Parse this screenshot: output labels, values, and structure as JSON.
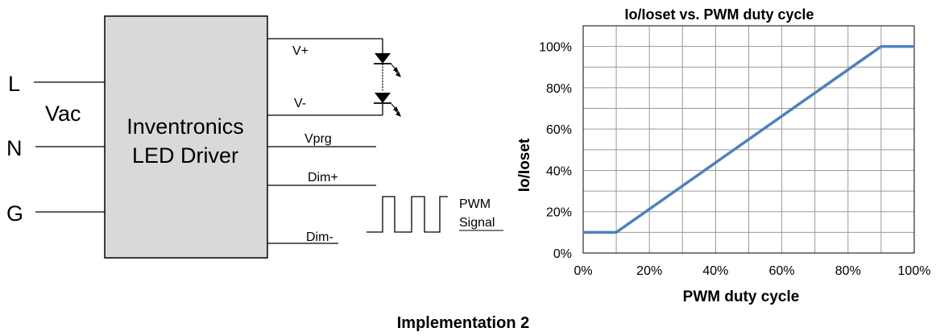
{
  "diagram": {
    "driver_label_line1": "Inventronics",
    "driver_label_line2": "LED Driver",
    "input_labels": {
      "live": "L",
      "neutral": "N",
      "ground": "G",
      "vac": "Vac"
    },
    "output_labels": {
      "v_plus": "V+",
      "v_minus": "V-",
      "vprg": "Vprg",
      "dim_plus": "Dim+",
      "dim_minus": "Dim-"
    },
    "pwm_label_line1": "PWM",
    "pwm_label_line2": "Signal"
  },
  "chart_data": {
    "type": "line",
    "title": "Io/Ioset vs. PWM duty cycle",
    "xlabel": "PWM duty cycle",
    "ylabel": "Io/Ioset",
    "xlim": [
      0,
      100
    ],
    "ylim": [
      0,
      110
    ],
    "x_ticks": [
      "0%",
      "20%",
      "40%",
      "60%",
      "80%",
      "100%"
    ],
    "y_ticks": [
      "0%",
      "20%",
      "40%",
      "60%",
      "80%",
      "100%"
    ],
    "grid": true,
    "series": [
      {
        "x": [
          0,
          10,
          90,
          100
        ],
        "y": [
          10,
          10,
          100,
          100
        ],
        "color": "#4f81bd"
      }
    ]
  },
  "caption": "Implementation 2"
}
